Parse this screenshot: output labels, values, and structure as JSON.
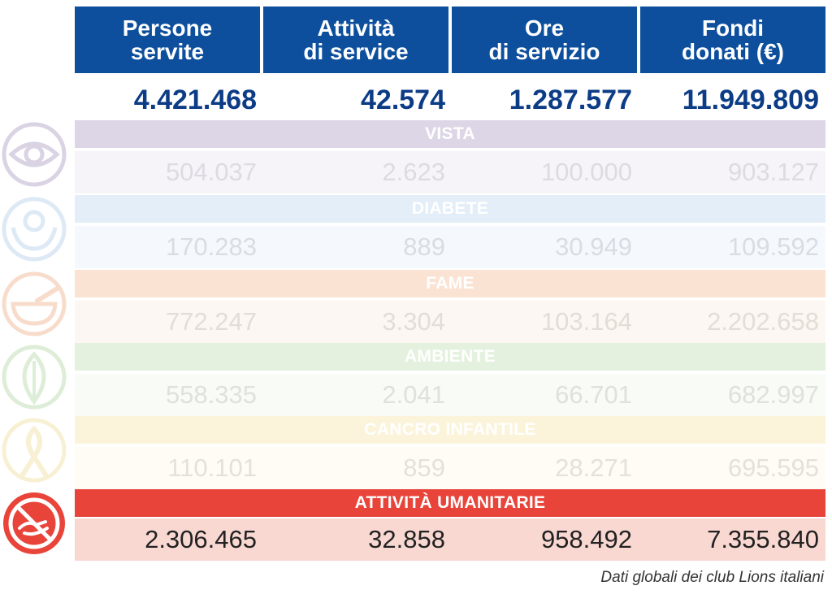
{
  "header": {
    "col1": [
      "Persone",
      "servite"
    ],
    "col2": [
      "Attività",
      "di service"
    ],
    "col3": [
      "Ore",
      "di servizio"
    ],
    "col4": [
      "Fondi",
      "donati (€)"
    ]
  },
  "totals": [
    "4.421.468",
    "42.574",
    "1.287.577",
    "11.949.809"
  ],
  "sections": [
    {
      "label": "VISTA",
      "icon": "eye-icon",
      "band_color": "#dcd6e6",
      "row_color": "#f6f4f9",
      "value_color": "#dcdbe2",
      "values": [
        "504.037",
        "2.623",
        "100.000",
        "903.127"
      ]
    },
    {
      "label": "DIABETE",
      "icon": "diabetes-hands-icon",
      "band_color": "#e3eef8",
      "row_color": "#f5f9fd",
      "value_color": "#d8dde3",
      "values": [
        "170.283",
        "889",
        "30.949",
        "109.592"
      ]
    },
    {
      "label": "FAME",
      "icon": "bowl-icon",
      "band_color": "#fbe3d4",
      "row_color": "#fdf7f3",
      "value_color": "#e3ddd8",
      "values": [
        "772.247",
        "3.304",
        "103.164",
        "2.202.658"
      ]
    },
    {
      "label": "AMBIENTE",
      "icon": "leaf-icon",
      "band_color": "#e4f1de",
      "row_color": "#f8fbf6",
      "value_color": "#dde2da",
      "values": [
        "558.335",
        "2.041",
        "66.701",
        "682.997"
      ]
    },
    {
      "label": "CANCRO INFANTILE",
      "icon": "ribbon-icon",
      "band_color": "#fbf4db",
      "row_color": "#fefcf5",
      "value_color": "#e3e1d8",
      "values": [
        "110.101",
        "859",
        "28.271",
        "695.595"
      ]
    },
    {
      "label": "ATTIVITÀ UMANITARIE",
      "icon": "helping-hands-icon",
      "band_color": "#e8443a",
      "row_color": "#f9d8d2",
      "value_color": "#222222",
      "values": [
        "2.306.465",
        "32.858",
        "958.492",
        "7.355.840"
      ]
    }
  ],
  "footnote": "Dati globali dei club Lions italiani",
  "colors": {
    "header_bg": "#0d4f9c",
    "totals": "#0c3c86"
  }
}
